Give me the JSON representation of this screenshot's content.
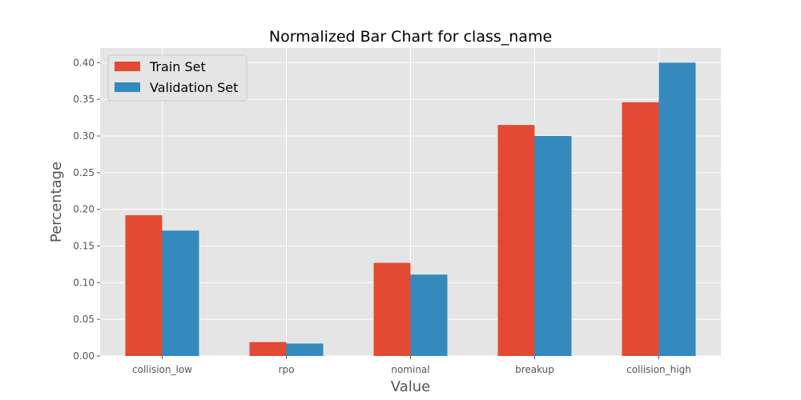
{
  "chart_data": {
    "type": "bar",
    "title": "Normalized Bar Chart for class_name",
    "xlabel": "Value",
    "ylabel": "Percentage",
    "categories": [
      "collision_low",
      "rpo",
      "nominal",
      "breakup",
      "collision_high"
    ],
    "series": [
      {
        "name": "Train Set",
        "color": "#E24A33",
        "values": [
          0.192,
          0.019,
          0.127,
          0.315,
          0.346
        ]
      },
      {
        "name": "Validation Set",
        "color": "#348ABD",
        "values": [
          0.171,
          0.017,
          0.111,
          0.3,
          0.4
        ]
      }
    ],
    "ylim": [
      0,
      0.42
    ],
    "yticks": [
      "0.00",
      "0.05",
      "0.10",
      "0.15",
      "0.20",
      "0.25",
      "0.30",
      "0.35",
      "0.40"
    ],
    "grid": true,
    "legend_position": "top-left",
    "style": {
      "plot_background": "#E5E5E5",
      "grid_color": "#FFFFFF"
    }
  }
}
